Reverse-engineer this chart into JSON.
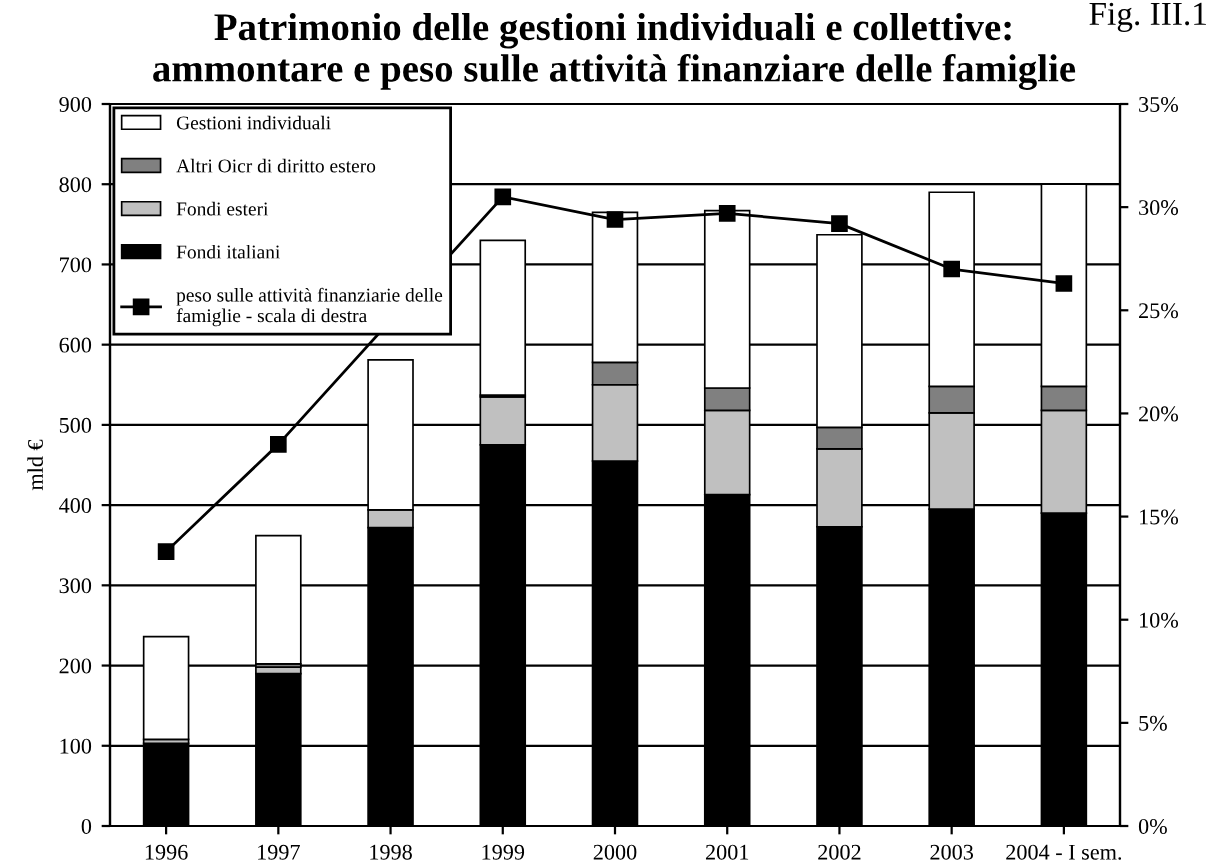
{
  "chart_data": {
    "type": "bar",
    "stacked": true,
    "title": "Patrimonio delle gestioni individuali e collettive:\nammontare e peso sulle attività finanziare delle famiglie",
    "annotations": [
      "Fig. III.1"
    ],
    "ylabel": "mld €",
    "categories": [
      "1996",
      "1997",
      "1998",
      "1999",
      "2000",
      "2001",
      "2002",
      "2003",
      "2004 - I sem."
    ],
    "series": [
      {
        "name": "Fondi italiani",
        "color": "#000000",
        "values": [
          103,
          190,
          372,
          475,
          455,
          413,
          373,
          395,
          390
        ]
      },
      {
        "name": "Fondi esteri",
        "color": "#c0c0c0",
        "values": [
          5,
          8,
          22,
          60,
          95,
          105,
          97,
          120,
          128
        ]
      },
      {
        "name": "Altri Oicr di diritto estero",
        "color": "#808080",
        "values": [
          null,
          4,
          null,
          2,
          28,
          28,
          27,
          33,
          30
        ]
      },
      {
        "name": "Gestioni individuali",
        "color": "#ffffff",
        "values": [
          128,
          160,
          187,
          193,
          187,
          221,
          240,
          242,
          252
        ]
      },
      {
        "name": "peso sulle attività finanziarie delle\nfamiglie - scala di destra",
        "type": "line",
        "axis": "y2",
        "color": "#000000",
        "marker": "square",
        "values": [
          13.3,
          18.5,
          null,
          30.5,
          29.4,
          29.7,
          29.2,
          27.0,
          26.3
        ]
      }
    ],
    "ylim": [
      0,
      900
    ],
    "yticks": [
      0,
      100,
      200,
      300,
      400,
      500,
      600,
      700,
      800,
      900
    ],
    "y2lim": [
      0,
      35
    ],
    "y2ticks": [
      {
        "value": 0,
        "label": "0%"
      },
      {
        "value": 5,
        "label": "5%"
      },
      {
        "value": 10,
        "label": "10%"
      },
      {
        "value": 15,
        "label": "15%"
      },
      {
        "value": 20,
        "label": "20%"
      },
      {
        "value": 25,
        "label": "25%"
      },
      {
        "value": 30,
        "label": "30%"
      },
      {
        "value": 35,
        "label": "35%"
      }
    ],
    "grid": "y",
    "legend": "top left"
  }
}
